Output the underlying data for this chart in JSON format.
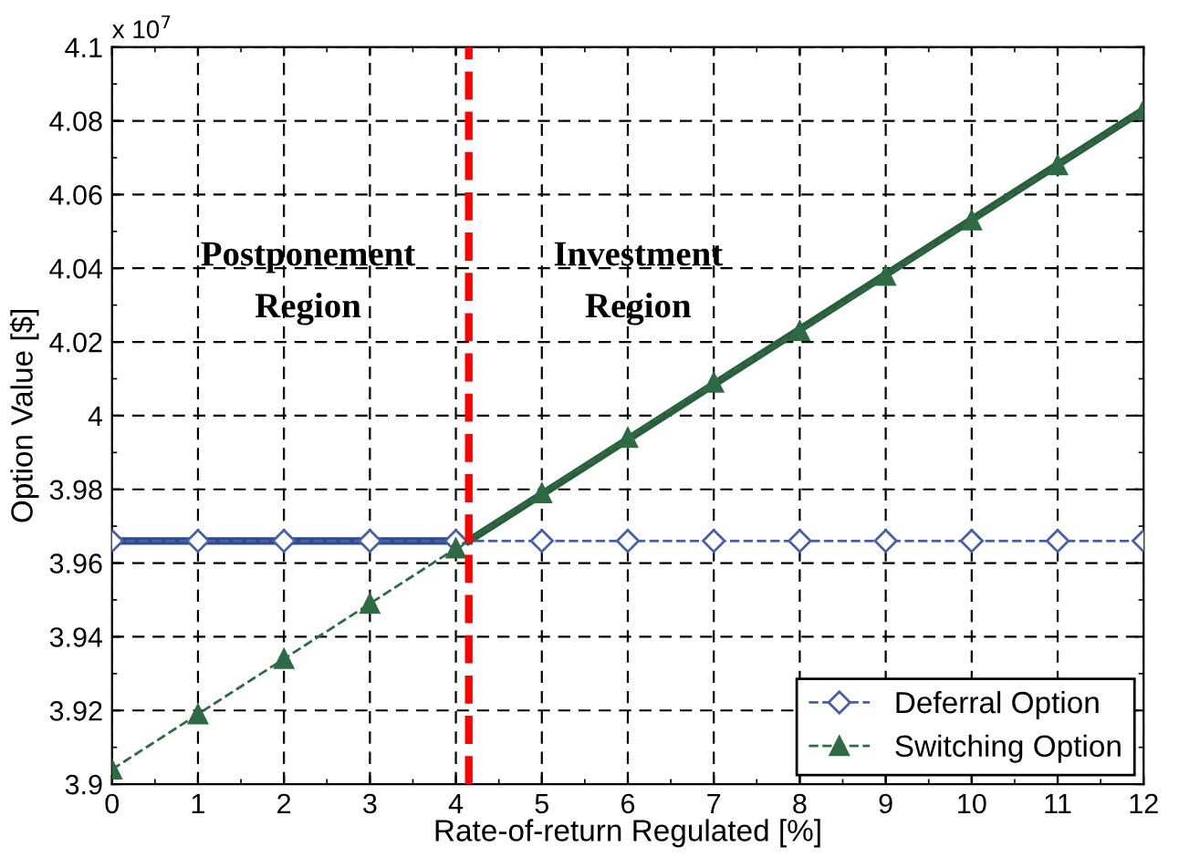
{
  "chart_data": {
    "type": "line",
    "xlabel": "Rate-of-return Regulated [%]",
    "ylabel": "Option Value [$]",
    "x": [
      0,
      1,
      2,
      3,
      4,
      5,
      6,
      7,
      8,
      9,
      10,
      11,
      12
    ],
    "series": [
      {
        "name": "Deferral Option",
        "color": "#4a5fa8",
        "marker": "diamond",
        "line_style": "dashed",
        "values": [
          3.966,
          3.966,
          3.966,
          3.966,
          3.966,
          3.966,
          3.966,
          3.966,
          3.966,
          3.966,
          3.966,
          3.966,
          3.966
        ]
      },
      {
        "name": "Switching Option",
        "color": "#2e6b45",
        "marker": "triangle",
        "line_style": "dashed",
        "values": [
          3.904,
          3.919,
          3.934,
          3.949,
          3.964,
          3.979,
          3.994,
          4.009,
          4.023,
          4.038,
          4.053,
          4.068,
          4.083
        ]
      },
      {
        "color": "#2c4a8c",
        "marker": "none",
        "line_style": "solid",
        "x": [
          0,
          4.15
        ],
        "values": [
          3.966,
          3.966
        ]
      },
      {
        "color": "#2a5e3c",
        "marker": "none",
        "line_style": "solid",
        "x": [
          4.15,
          12
        ],
        "values": [
          3.966,
          4.083
        ]
      }
    ],
    "xlim": [
      0,
      12
    ],
    "xticks": [
      0,
      1,
      2,
      3,
      4,
      5,
      6,
      7,
      8,
      9,
      10,
      11,
      12
    ],
    "ylim": [
      3.9,
      4.1
    ],
    "yticks": [
      3.9,
      3.92,
      3.94,
      3.96,
      3.98,
      {
        "value": 4,
        "label": "4"
      },
      4.02,
      4.04,
      4.06,
      4.08,
      4.1
    ],
    "ref_lines": [
      {
        "axis": "x",
        "value": 4.15,
        "color": "#ff0000",
        "line_style": "dashed"
      }
    ],
    "annotations": [
      "x 10$^{7}$",
      "Postponement\nRegion",
      "Investment\nRegion"
    ],
    "grid": true,
    "legend": "bottom right"
  }
}
